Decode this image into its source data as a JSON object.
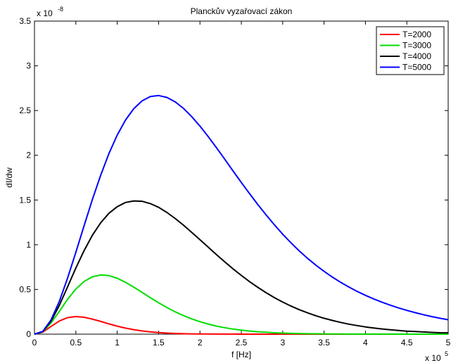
{
  "chart_data": {
    "type": "line",
    "title": "Planckův vyzařovací zákon",
    "xlabel": "f [Hz]",
    "ylabel": "dI/dw",
    "x_multiplier": "x 10",
    "x_multiplier_exp": "5",
    "y_multiplier": "x 10",
    "y_multiplier_exp": "-8",
    "xlim": [
      0,
      5
    ],
    "ylim": [
      0,
      3.5
    ],
    "x_ticks": [
      0,
      0.5,
      1,
      1.5,
      2,
      2.5,
      3,
      3.5,
      4,
      4.5,
      5
    ],
    "x_tick_labels": [
      "0",
      "0.5",
      "1",
      "1.5",
      "2",
      "2.5",
      "3",
      "3.5",
      "4",
      "4.5",
      "5"
    ],
    "y_ticks": [
      0,
      0.5,
      1,
      1.5,
      2,
      2.5,
      3,
      3.5
    ],
    "y_tick_labels": [
      "0",
      "0.5",
      "1",
      "1.5",
      "2",
      "2.5",
      "3",
      "3.5"
    ],
    "grid": false,
    "legend_position": "top-right",
    "x": [
      0,
      0.1,
      0.2,
      0.3,
      0.4,
      0.5,
      0.6,
      0.7,
      0.8,
      0.9,
      1.0,
      1.1,
      1.2,
      1.3,
      1.4,
      1.5,
      1.6,
      1.7,
      1.8,
      1.9,
      2.0,
      2.1,
      2.2,
      2.3,
      2.4,
      2.5,
      2.6,
      2.7,
      2.8,
      2.9,
      3.0,
      3.1,
      3.2,
      3.3,
      3.4,
      3.5,
      3.6,
      3.7,
      3.8,
      3.9,
      4.0,
      4.1,
      4.2,
      4.3,
      4.4,
      4.5,
      4.6,
      4.7,
      4.8,
      4.9,
      5.0
    ],
    "series": [
      {
        "name": "T=2000",
        "color": "#ff0000",
        "values": [
          0,
          0.022,
          0.086,
          0.147,
          0.185,
          0.197,
          0.189,
          0.168,
          0.142,
          0.115,
          0.09,
          0.068,
          0.05,
          0.036,
          0.025,
          0.017,
          0.012,
          0.008,
          0.005,
          0.003,
          0.002,
          0.0014,
          0.0009,
          0.0006,
          0.0004,
          0.0002,
          0.0001,
          0.0001,
          0,
          0,
          0,
          0,
          0,
          0,
          0,
          0,
          0,
          0,
          0,
          0,
          0,
          0,
          0,
          0,
          0,
          0,
          0,
          0,
          0,
          0,
          0
        ]
      },
      {
        "name": "T=3000",
        "color": "#00dd00",
        "values": [
          0,
          0.027,
          0.124,
          0.254,
          0.389,
          0.504,
          0.59,
          0.641,
          0.662,
          0.654,
          0.625,
          0.58,
          0.526,
          0.467,
          0.408,
          0.351,
          0.298,
          0.25,
          0.208,
          0.171,
          0.139,
          0.113,
          0.09,
          0.072,
          0.057,
          0.045,
          0.035,
          0.027,
          0.021,
          0.016,
          0.012,
          0.009,
          0.007,
          0.005,
          0.004,
          0.003,
          0.002,
          0.002,
          0.001,
          0.001,
          0.001,
          0.0007,
          0.0005,
          0.0004,
          0.0003,
          0.0002,
          0.0001,
          0.0001,
          0.0001,
          0.0001,
          0
        ]
      },
      {
        "name": "T=4000",
        "color": "#000000",
        "values": [
          0,
          0.03,
          0.145,
          0.322,
          0.528,
          0.739,
          0.935,
          1.106,
          1.245,
          1.351,
          1.425,
          1.472,
          1.49,
          1.486,
          1.46,
          1.418,
          1.361,
          1.294,
          1.219,
          1.139,
          1.056,
          0.972,
          0.889,
          0.808,
          0.73,
          0.657,
          0.587,
          0.523,
          0.463,
          0.408,
          0.359,
          0.314,
          0.274,
          0.238,
          0.206,
          0.178,
          0.153,
          0.131,
          0.112,
          0.096,
          0.081,
          0.069,
          0.058,
          0.049,
          0.041,
          0.034,
          0.029,
          0.024,
          0.02,
          0.016,
          0.014
        ]
      },
      {
        "name": "T=5000",
        "color": "#0000ff",
        "values": [
          0,
          0.031,
          0.159,
          0.366,
          0.626,
          0.915,
          1.214,
          1.505,
          1.777,
          2.019,
          2.226,
          2.394,
          2.521,
          2.608,
          2.656,
          2.668,
          2.647,
          2.598,
          2.525,
          2.433,
          2.326,
          2.208,
          2.084,
          1.955,
          1.825,
          1.696,
          1.57,
          1.448,
          1.332,
          1.222,
          1.118,
          1.021,
          0.931,
          0.848,
          0.772,
          0.702,
          0.638,
          0.58,
          0.527,
          0.478,
          0.434,
          0.394,
          0.357,
          0.324,
          0.293,
          0.266,
          0.241,
          0.218,
          0.197,
          0.178,
          0.161
        ]
      }
    ]
  }
}
